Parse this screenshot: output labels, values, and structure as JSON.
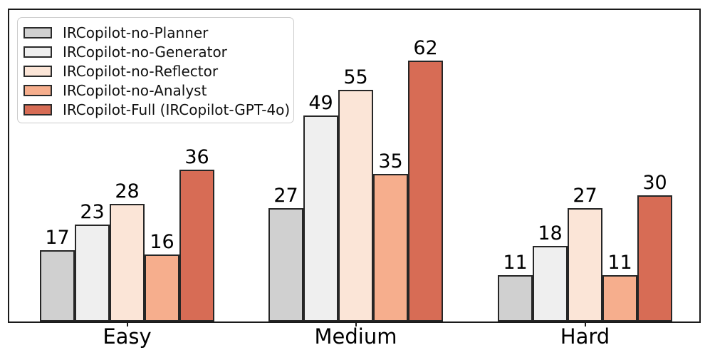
{
  "figure": {
    "background": "#ffffff",
    "axis_color": "#1a1a1a"
  },
  "chart_data": {
    "type": "bar",
    "title": "",
    "xlabel": "",
    "ylabel": "",
    "categories": [
      "Easy",
      "Medium",
      "Hard"
    ],
    "series": [
      {
        "name": "IRCopilot-no-Planner",
        "color": "#d0d0d0",
        "values": [
          17,
          27,
          11
        ]
      },
      {
        "name": "IRCopilot-no-Generator",
        "color": "#efefef",
        "values": [
          23,
          49,
          18
        ]
      },
      {
        "name": "IRCopilot-no-Reflector",
        "color": "#fbe5d7",
        "values": [
          28,
          55,
          27
        ]
      },
      {
        "name": "IRCopilot-no-Analyst",
        "color": "#f6ae8d",
        "values": [
          16,
          35,
          11
        ]
      },
      {
        "name": "IRCopilot-Full (IRCopilot-GPT-4o)",
        "color": "#d76c55",
        "values": [
          36,
          62,
          30
        ]
      }
    ],
    "ylim": [
      0,
      74
    ],
    "grid": false,
    "value_labels_shown": true,
    "bar_edge_color": "#262626",
    "legend": {
      "position": "upper-left",
      "background": "#ffffff",
      "border_color": "#cccccc"
    }
  }
}
